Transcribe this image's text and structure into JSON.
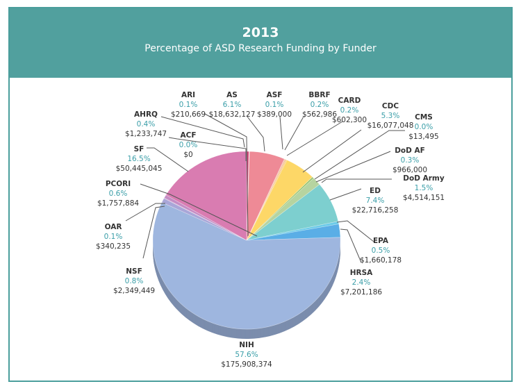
{
  "chart_data": {
    "type": "pie",
    "title": "2013",
    "subtitle": "Percentage of ASD Research Funding by Funder",
    "slices": [
      {
        "name": "ACF",
        "percent_label": "0.0%",
        "amount": "$0",
        "percent": 0.0,
        "color": "#c94a7a"
      },
      {
        "name": "AHRQ",
        "percent_label": "0.4%",
        "amount": "$1,233,747",
        "percent": 0.4,
        "color": "#d9457a"
      },
      {
        "name": "ARI",
        "percent_label": "0.1%",
        "amount": "$210,669",
        "percent": 0.1,
        "color": "#e8e8e8"
      },
      {
        "name": "AS",
        "percent_label": "6.1%",
        "amount": "$18,632,127",
        "percent": 6.1,
        "color": "#ee8a96"
      },
      {
        "name": "ASF",
        "percent_label": "0.1%",
        "amount": "$389,000",
        "percent": 0.1,
        "color": "#f2a38f"
      },
      {
        "name": "BBRF",
        "percent_label": "0.2%",
        "amount": "$562,986",
        "percent": 0.2,
        "color": "#f6b98a"
      },
      {
        "name": "CARD",
        "percent_label": "0.2%",
        "amount": "$602,300",
        "percent": 0.2,
        "color": "#f9c97a"
      },
      {
        "name": "CDC",
        "percent_label": "5.3%",
        "amount": "$16,077,048",
        "percent": 5.3,
        "color": "#fdd767"
      },
      {
        "name": "CMS",
        "percent_label": "0.0%",
        "amount": "$13,495",
        "percent": 0.0,
        "color": "#d7de7a"
      },
      {
        "name": "DoD AF",
        "percent_label": "0.3%",
        "amount": "$966,000",
        "percent": 0.3,
        "color": "#98c46e"
      },
      {
        "name": "DoD Army",
        "percent_label": "1.5%",
        "amount": "$4,514,151",
        "percent": 1.5,
        "color": "#b6d4a0"
      },
      {
        "name": "ED",
        "percent_label": "7.4%",
        "amount": "$22,716,258",
        "percent": 7.4,
        "color": "#7dcfcf"
      },
      {
        "name": "EPA",
        "percent_label": "0.5%",
        "amount": "$1,660,178",
        "percent": 0.5,
        "color": "#6ccbe8"
      },
      {
        "name": "HRSA",
        "percent_label": "2.4%",
        "amount": "$7,201,186",
        "percent": 2.4,
        "color": "#5aaee6"
      },
      {
        "name": "NIH",
        "percent_label": "57.6%",
        "amount": "$175,908,374",
        "percent": 57.6,
        "color": "#9eb6df"
      },
      {
        "name": "NSF",
        "percent_label": "0.8%",
        "amount": "$2,349,449",
        "percent": 0.8,
        "color": "#a9a6d8"
      },
      {
        "name": "OAR",
        "percent_label": "0.1%",
        "amount": "$340,235",
        "percent": 0.1,
        "color": "#b895cc"
      },
      {
        "name": "PCORI",
        "percent_label": "0.6%",
        "amount": "$1,757,884",
        "percent": 0.6,
        "color": "#c58cc4"
      },
      {
        "name": "SF",
        "percent_label": "16.5%",
        "amount": "$50,445,045",
        "percent": 16.5,
        "color": "#d97cb1"
      }
    ]
  }
}
